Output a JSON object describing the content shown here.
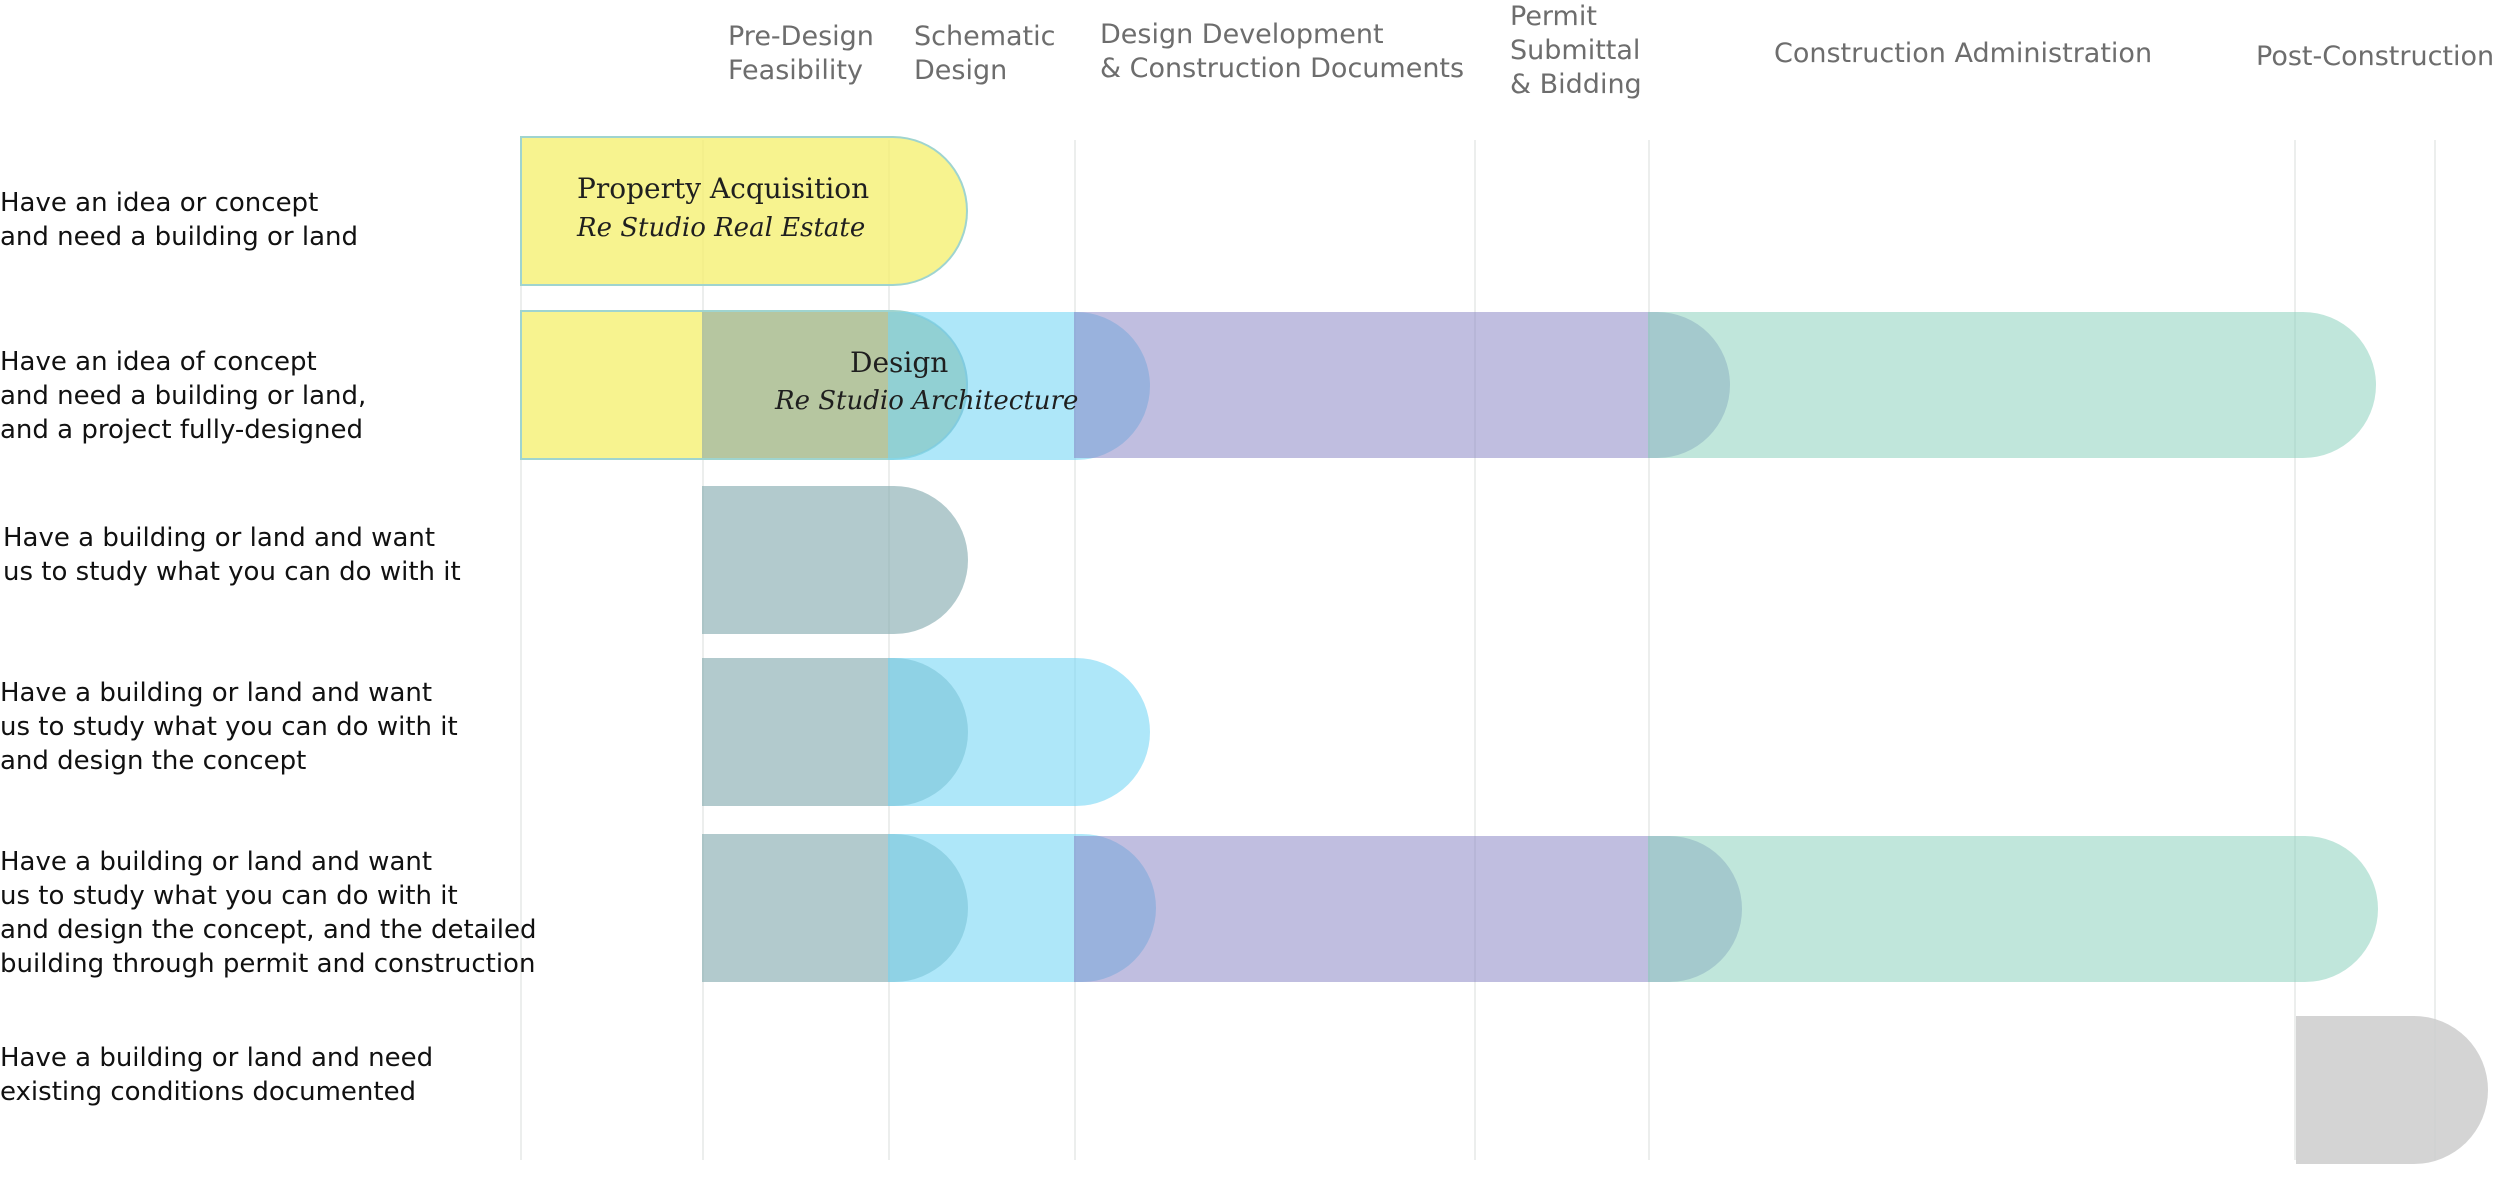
{
  "phases": {
    "pre_design": "Pre-Design\nFeasibility",
    "schematic": "Schematic\nDesign",
    "design_dev": "Design Development\n& Construction Documents",
    "permit": "Permit\nSubmittal\n& Bidding",
    "construction_admin": "Construction Administration",
    "post_construction": "Post-Construction"
  },
  "rows": [
    "Have an idea or concept\nand need a building or land",
    "Have an idea of concept\nand need a building or land,\nand a project fully-designed",
    "Have a building or land and want\nus to study what you can do with it",
    "Have a building or land and want\nus to study what you can do with it\nand design the concept",
    "Have a building or land and want\nus to study what you can do with it\nand design the concept, and the detailed\nbuilding through permit and construction",
    "Have a building or land and need\nexisting conditions documented"
  ],
  "bars": {
    "property": {
      "title": "Property Acquisition",
      "subtitle": "Re Studio Real Estate"
    },
    "design": {
      "title": "Design",
      "subtitle": "Re Studio Architecture"
    }
  },
  "colors": {
    "yellow": "#f5ef6f",
    "teal_gray": "#93b7b8",
    "cyan": "#8dd9f3",
    "purple": "#a9a8d4",
    "green": "#a4dbc8",
    "gray": "#cfcfcf"
  }
}
